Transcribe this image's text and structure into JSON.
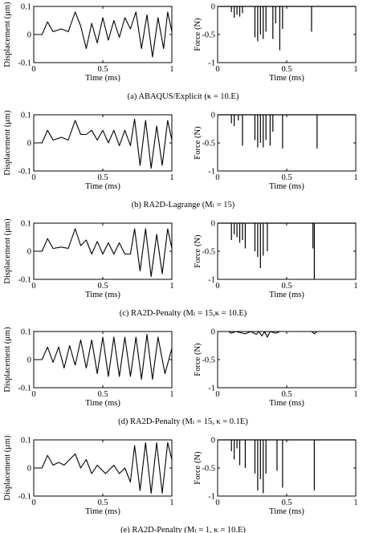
{
  "figure": {
    "axis_labels": {
      "displacement": "Displacement (μm)",
      "force": "Force (N)",
      "time": "Time (ms)"
    },
    "panels": [
      {
        "caption": "(a)  ABAQUS/Explicit (κ = 10.E)"
      },
      {
        "caption": "(b)  RA2D-Lagrange (Mₗ = 15)"
      },
      {
        "caption": "(c)  RA2D-Penalty (Mₗ = 15,κ = 10.E)"
      },
      {
        "caption": "(d)  RA2D-Penalty (Mₗ = 15, κ = 0.1E)"
      },
      {
        "caption": "(e)  RA2D-Penalty (Mₗ = 1, κ = 10.E)"
      }
    ]
  },
  "chart_data": [
    {
      "panel": "a",
      "type": "line",
      "xlabel": "Time (ms)",
      "ylabel": "Displacement (μm)",
      "xlim": [
        0,
        1
      ],
      "ylim": [
        -0.1,
        0.1
      ],
      "xticks": [
        "0",
        "0.5",
        "1"
      ],
      "yticks": [
        "0.1",
        "0",
        "-0.1"
      ],
      "series": [
        {
          "values_xy": [
            [
              0,
              0
            ],
            [
              0.06,
              0
            ],
            [
              0.1,
              0.045
            ],
            [
              0.14,
              0.01
            ],
            [
              0.2,
              0.02
            ],
            [
              0.25,
              0.01
            ],
            [
              0.3,
              0.08
            ],
            [
              0.34,
              0.03
            ],
            [
              0.38,
              -0.05
            ],
            [
              0.42,
              0.04
            ],
            [
              0.46,
              -0.03
            ],
            [
              0.5,
              0.06
            ],
            [
              0.54,
              -0.02
            ],
            [
              0.58,
              0.05
            ],
            [
              0.62,
              -0.01
            ],
            [
              0.66,
              0.06
            ],
            [
              0.7,
              0.02
            ],
            [
              0.74,
              0.08
            ],
            [
              0.78,
              -0.05
            ],
            [
              0.82,
              0.07
            ],
            [
              0.86,
              -0.08
            ],
            [
              0.9,
              0.06
            ],
            [
              0.94,
              -0.05
            ],
            [
              0.97,
              0.08
            ],
            [
              1,
              0.01
            ]
          ]
        }
      ]
    },
    {
      "panel": "a",
      "type": "line",
      "xlabel": "Time (ms)",
      "ylabel": "Force (N)",
      "xlim": [
        0,
        1
      ],
      "ylim": [
        -1,
        0
      ],
      "xticks": [
        "0",
        "0.5",
        "1"
      ],
      "yticks": [
        "0",
        "-0.5",
        "-1"
      ],
      "series": [
        {
          "spikes": [
            [
              0.1,
              -0.1
            ],
            [
              0.12,
              -0.2
            ],
            [
              0.14,
              -0.15
            ],
            [
              0.16,
              -0.18
            ],
            [
              0.18,
              -0.12
            ],
            [
              0.27,
              -0.55
            ],
            [
              0.29,
              -0.62
            ],
            [
              0.31,
              -0.5
            ],
            [
              0.33,
              -0.58
            ],
            [
              0.35,
              -0.45
            ],
            [
              0.4,
              -0.58
            ],
            [
              0.42,
              -0.3
            ],
            [
              0.45,
              -0.78
            ],
            [
              0.47,
              -0.4
            ],
            [
              0.68,
              -0.45
            ]
          ]
        }
      ]
    },
    {
      "panel": "b",
      "type": "line",
      "xlabel": "Time (ms)",
      "ylabel": "Displacement (μm)",
      "xlim": [
        0,
        1
      ],
      "ylim": [
        -0.1,
        0.1
      ],
      "xticks": [
        "0",
        "0.5",
        "1"
      ],
      "yticks": [
        "0.1",
        "0",
        "-0.1"
      ],
      "series": [
        {
          "values_xy": [
            [
              0,
              0
            ],
            [
              0.06,
              0
            ],
            [
              0.1,
              0.045
            ],
            [
              0.14,
              0.01
            ],
            [
              0.2,
              0.02
            ],
            [
              0.25,
              0.01
            ],
            [
              0.3,
              0.08
            ],
            [
              0.34,
              0.03
            ],
            [
              0.38,
              0.03
            ],
            [
              0.42,
              0.045
            ],
            [
              0.46,
              0.01
            ],
            [
              0.5,
              0.045
            ],
            [
              0.54,
              0.0
            ],
            [
              0.58,
              0.045
            ],
            [
              0.62,
              -0.01
            ],
            [
              0.66,
              0.045
            ],
            [
              0.7,
              -0.01
            ],
            [
              0.73,
              0.085
            ],
            [
              0.77,
              -0.08
            ],
            [
              0.81,
              0.08
            ],
            [
              0.85,
              -0.09
            ],
            [
              0.89,
              0.06
            ],
            [
              0.93,
              -0.08
            ],
            [
              0.97,
              0.08
            ],
            [
              1,
              0.01
            ]
          ]
        }
      ]
    },
    {
      "panel": "b",
      "type": "line",
      "xlabel": "Time (ms)",
      "ylabel": "Force (N)",
      "xlim": [
        0,
        1
      ],
      "ylim": [
        -1,
        0
      ],
      "xticks": [
        "0",
        "0.5",
        "1"
      ],
      "yticks": [
        "0",
        "-0.5",
        "-1"
      ],
      "series": [
        {
          "spikes": [
            [
              0.1,
              -0.15
            ],
            [
              0.12,
              -0.2
            ],
            [
              0.15,
              -0.1
            ],
            [
              0.18,
              -0.55
            ],
            [
              0.27,
              -0.45
            ],
            [
              0.29,
              -0.58
            ],
            [
              0.31,
              -0.5
            ],
            [
              0.33,
              -0.58
            ],
            [
              0.35,
              -0.45
            ],
            [
              0.38,
              -0.55
            ],
            [
              0.4,
              -0.3
            ],
            [
              0.47,
              -0.6
            ],
            [
              0.72,
              -0.6
            ]
          ]
        }
      ]
    },
    {
      "panel": "c",
      "type": "line",
      "xlabel": "Time (ms)",
      "ylabel": "Displacement (μm)",
      "xlim": [
        0,
        1
      ],
      "ylim": [
        -0.1,
        0.1
      ],
      "xticks": [
        "0",
        "0.5",
        "1"
      ],
      "yticks": [
        "0.1",
        "0",
        "-0.1"
      ],
      "series": [
        {
          "values_xy": [
            [
              0,
              0
            ],
            [
              0.06,
              0
            ],
            [
              0.1,
              0.045
            ],
            [
              0.14,
              0.01
            ],
            [
              0.2,
              0.015
            ],
            [
              0.25,
              0.01
            ],
            [
              0.3,
              0.08
            ],
            [
              0.34,
              0.02
            ],
            [
              0.38,
              0.04
            ],
            [
              0.42,
              -0.01
            ],
            [
              0.46,
              0.035
            ],
            [
              0.5,
              -0.01
            ],
            [
              0.54,
              0.03
            ],
            [
              0.58,
              -0.01
            ],
            [
              0.62,
              0.03
            ],
            [
              0.66,
              -0.01
            ],
            [
              0.7,
              -0.01
            ],
            [
              0.73,
              0.08
            ],
            [
              0.77,
              -0.07
            ],
            [
              0.81,
              0.08
            ],
            [
              0.85,
              -0.09
            ],
            [
              0.89,
              0.06
            ],
            [
              0.93,
              -0.08
            ],
            [
              0.97,
              0.08
            ],
            [
              1,
              0.01
            ]
          ]
        }
      ]
    },
    {
      "panel": "c",
      "type": "line",
      "xlabel": "Time (ms)",
      "ylabel": "Force (N)",
      "xlim": [
        0,
        1
      ],
      "ylim": [
        -1,
        0
      ],
      "xticks": [
        "0",
        "0.5",
        "1"
      ],
      "yticks": [
        "0",
        "-0.5",
        "-1"
      ],
      "series": [
        {
          "spikes": [
            [
              0.1,
              -0.3
            ],
            [
              0.12,
              -0.2
            ],
            [
              0.14,
              -0.25
            ],
            [
              0.16,
              -0.35
            ],
            [
              0.18,
              -0.3
            ],
            [
              0.2,
              -0.45
            ],
            [
              0.27,
              -0.5
            ],
            [
              0.29,
              -0.6
            ],
            [
              0.31,
              -0.8
            ],
            [
              0.33,
              -0.58
            ],
            [
              0.36,
              -0.5
            ],
            [
              0.69,
              -0.45
            ],
            [
              0.7,
              -1.0
            ]
          ]
        }
      ]
    },
    {
      "panel": "d",
      "type": "line",
      "xlabel": "Time (ms)",
      "ylabel": "Displacement (μm)",
      "xlim": [
        0,
        1
      ],
      "ylim": [
        -0.1,
        0.1
      ],
      "xticks": [
        "0",
        "0.5",
        "1"
      ],
      "yticks": [
        "0.1",
        "0",
        "-0.1"
      ],
      "series": [
        {
          "values_xy": [
            [
              0,
              0
            ],
            [
              0.06,
              0
            ],
            [
              0.1,
              0.045
            ],
            [
              0.14,
              -0.01
            ],
            [
              0.18,
              0.045
            ],
            [
              0.22,
              -0.03
            ],
            [
              0.26,
              0.05
            ],
            [
              0.3,
              -0.02
            ],
            [
              0.34,
              0.07
            ],
            [
              0.38,
              -0.03
            ],
            [
              0.42,
              0.07
            ],
            [
              0.46,
              -0.05
            ],
            [
              0.5,
              0.08
            ],
            [
              0.54,
              -0.06
            ],
            [
              0.58,
              0.08
            ],
            [
              0.62,
              -0.06
            ],
            [
              0.66,
              0.08
            ],
            [
              0.7,
              -0.06
            ],
            [
              0.74,
              0.08
            ],
            [
              0.78,
              -0.07
            ],
            [
              0.82,
              0.09
            ],
            [
              0.86,
              -0.07
            ],
            [
              0.9,
              0.08
            ],
            [
              0.95,
              -0.05
            ],
            [
              1,
              0.04
            ]
          ]
        }
      ]
    },
    {
      "panel": "d",
      "type": "line",
      "xlabel": "Time (ms)",
      "ylabel": "Force (N)",
      "xlim": [
        0,
        1
      ],
      "ylim": [
        -1,
        0
      ],
      "xticks": [
        "0",
        "0.5",
        "1"
      ],
      "yticks": [
        "0",
        "-0.5",
        "-1"
      ],
      "series": [
        {
          "values_xy": [
            [
              0,
              0
            ],
            [
              0.08,
              0
            ],
            [
              0.1,
              -0.03
            ],
            [
              0.13,
              0
            ],
            [
              0.2,
              -0.04
            ],
            [
              0.24,
              0
            ],
            [
              0.28,
              -0.05
            ],
            [
              0.3,
              0
            ],
            [
              0.32,
              -0.08
            ],
            [
              0.34,
              0
            ],
            [
              0.36,
              -0.1
            ],
            [
              0.38,
              0
            ],
            [
              0.42,
              -0.03
            ],
            [
              0.45,
              0
            ],
            [
              0.68,
              0
            ],
            [
              0.7,
              -0.04
            ],
            [
              0.72,
              0
            ],
            [
              1,
              0
            ]
          ]
        }
      ]
    },
    {
      "panel": "e",
      "type": "line",
      "xlabel": "Time (ms)",
      "ylabel": "Displacement (μm)",
      "xlim": [
        0,
        1
      ],
      "ylim": [
        -0.1,
        0.1
      ],
      "xticks": [
        "0",
        "0.5",
        "1"
      ],
      "yticks": [
        "0.1",
        "0",
        "-0.1"
      ],
      "series": [
        {
          "values_xy": [
            [
              0,
              0
            ],
            [
              0.06,
              0
            ],
            [
              0.1,
              0.045
            ],
            [
              0.14,
              0.01
            ],
            [
              0.18,
              0.02
            ],
            [
              0.22,
              0.01
            ],
            [
              0.3,
              0.05
            ],
            [
              0.34,
              0.0
            ],
            [
              0.38,
              0.03
            ],
            [
              0.42,
              -0.02
            ],
            [
              0.46,
              0.01
            ],
            [
              0.52,
              -0.02
            ],
            [
              0.58,
              0.01
            ],
            [
              0.62,
              -0.02
            ],
            [
              0.66,
              0.0
            ],
            [
              0.7,
              -0.05
            ],
            [
              0.73,
              0.08
            ],
            [
              0.77,
              -0.08
            ],
            [
              0.81,
              0.09
            ],
            [
              0.85,
              -0.09
            ],
            [
              0.89,
              0.09
            ],
            [
              0.93,
              -0.09
            ],
            [
              0.97,
              0.09
            ],
            [
              1,
              0.03
            ]
          ]
        }
      ]
    },
    {
      "panel": "e",
      "type": "line",
      "xlabel": "Time (ms)",
      "ylabel": "Force (N)",
      "xlim": [
        0,
        1
      ],
      "ylim": [
        -1,
        0
      ],
      "xticks": [
        "0",
        "0.5",
        "1"
      ],
      "yticks": [
        "0",
        "-0.5",
        "-1"
      ],
      "series": [
        {
          "spikes": [
            [
              0.1,
              -0.2
            ],
            [
              0.12,
              -0.35
            ],
            [
              0.14,
              -0.15
            ],
            [
              0.16,
              -0.45
            ],
            [
              0.2,
              -0.5
            ],
            [
              0.27,
              -0.6
            ],
            [
              0.29,
              -0.9
            ],
            [
              0.31,
              -0.7
            ],
            [
              0.33,
              -0.95
            ],
            [
              0.35,
              -0.6
            ],
            [
              0.43,
              -0.55
            ],
            [
              0.47,
              -0.85
            ],
            [
              0.7,
              -0.9
            ]
          ]
        }
      ]
    }
  ]
}
